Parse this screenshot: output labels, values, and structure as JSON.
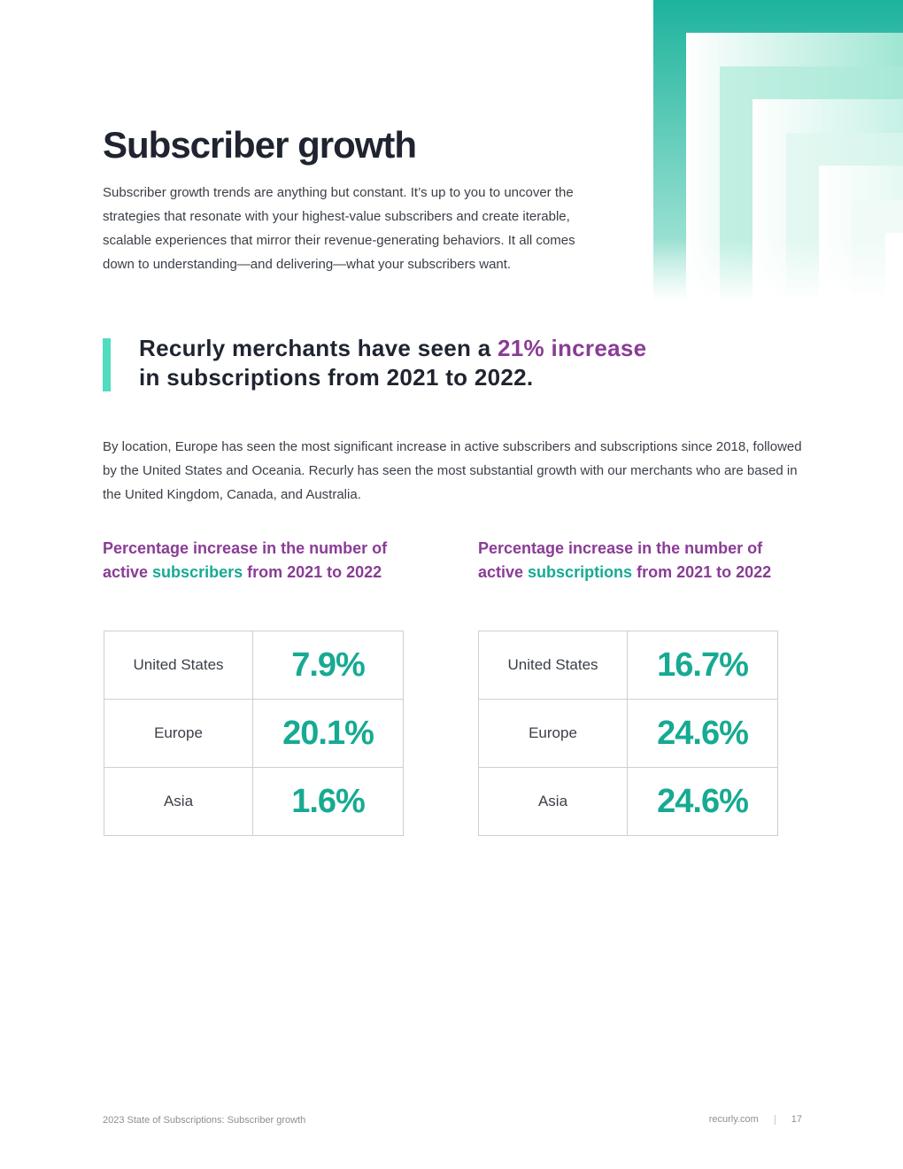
{
  "header": {
    "title": "Subscriber growth",
    "intro": "Subscriber growth trends are anything but constant. It’s up to you to uncover the strategies that resonate with your highest-value subscribers and create iterable, scalable experiences that mirror their revenue-generating behaviors. It all comes down to understanding—and delivering—what your subscribers want."
  },
  "callout": {
    "part1": "Recurly merchants have seen a ",
    "highlight": "21% increase",
    "part2": "in subscriptions from 2021 to 2022."
  },
  "body_text": "By location, Europe has seen the most significant increase in active subscribers and subscriptions since 2018, followed by the United States and Oceania. Recurly has seen the most substantial growth with our merchants who are based in the United Kingdom, Canada, and Australia.",
  "tables": [
    {
      "heading_part1": "Percentage increase in the number of active ",
      "heading_em": "subscribers",
      "heading_part2": " from 2021 to 2022",
      "rows": [
        {
          "region": "United States",
          "value": "7.9%"
        },
        {
          "region": "Europe",
          "value": "20.1%"
        },
        {
          "region": "Asia",
          "value": "1.6%"
        }
      ]
    },
    {
      "heading_part1": "Percentage increase in the number of active ",
      "heading_em": "subscriptions",
      "heading_part2": " from 2021 to 2022",
      "rows": [
        {
          "region": "United States",
          "value": "16.7%"
        },
        {
          "region": "Europe",
          "value": "24.6%"
        },
        {
          "region": "Asia",
          "value": "24.6%"
        }
      ]
    }
  ],
  "footer": {
    "left": "2023 State of Subscriptions: Subscriber growth",
    "site": "recurly.com",
    "page": "17"
  },
  "colors": {
    "accent_teal": "#17aa93",
    "accent_purple": "#8a3c96",
    "callout_bar": "#4fdcbf"
  }
}
